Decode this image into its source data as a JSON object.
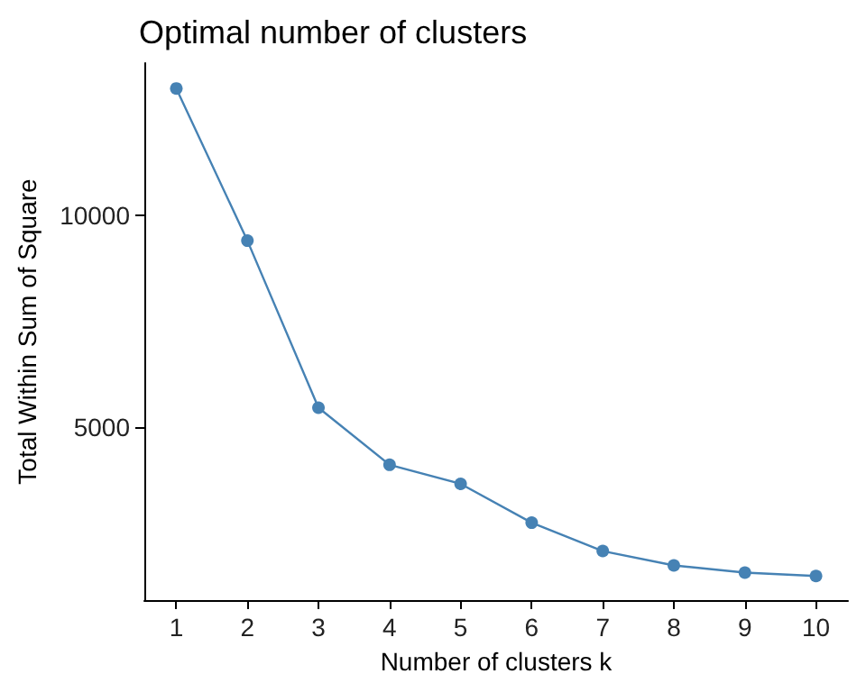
{
  "chart_data": {
    "type": "line",
    "title": "Optimal number of clusters",
    "xlabel": "Number of clusters k",
    "ylabel": "Total Within Sum of Square",
    "x": [
      1,
      2,
      3,
      4,
      5,
      6,
      7,
      8,
      9,
      10
    ],
    "series": [
      {
        "color": "#4682b4",
        "values": [
          13000,
          9400,
          5450,
          4100,
          3650,
          2730,
          2060,
          1720,
          1550,
          1470
        ]
      }
    ],
    "xlim": [
      0.55,
      10.45
    ],
    "xticks": [
      1,
      2,
      3,
      4,
      5,
      6,
      7,
      8,
      9,
      10
    ],
    "ylim": [
      900,
      13600
    ],
    "yticks": [
      5000,
      10000
    ],
    "grid": false,
    "marker": "circle",
    "line_style": "solid"
  }
}
